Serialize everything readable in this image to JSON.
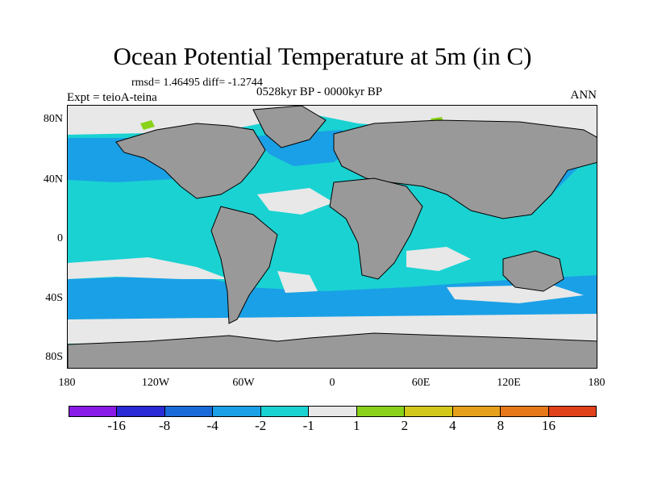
{
  "title": "Ocean Potential Temperature at 5m (in C)",
  "stats": "rmsd= 1.46495 diff= -1.2744",
  "experiment": "Expt = teioA-teina",
  "period": "0528kyr BP - 0000kyr BP",
  "season": "ANN",
  "lat_labels": [
    "80N",
    "40N",
    "0",
    "40S",
    "80S"
  ],
  "lon_labels": [
    "180",
    "120W",
    "60W",
    "0",
    "60E",
    "120E",
    "180"
  ],
  "colorbar": {
    "colors": [
      "#8a1ae6",
      "#2a2ad6",
      "#1a6ad9",
      "#1aa0e6",
      "#1ad2d2",
      "#e8e8e8",
      "#8ad21a",
      "#d2c81a",
      "#e6a01a",
      "#e6781a",
      "#e0401a"
    ],
    "labels": [
      "-16",
      "-8",
      "-4",
      "-2",
      "-1",
      "1",
      "2",
      "4",
      "8",
      "16"
    ]
  },
  "map_colors": {
    "land": "#999999",
    "ocean_lightblue": "#1aa0e6",
    "ocean_cyan": "#1ad2d2",
    "ocean_neutral": "#e8e8e8",
    "ocean_green": "#8ad21a"
  }
}
